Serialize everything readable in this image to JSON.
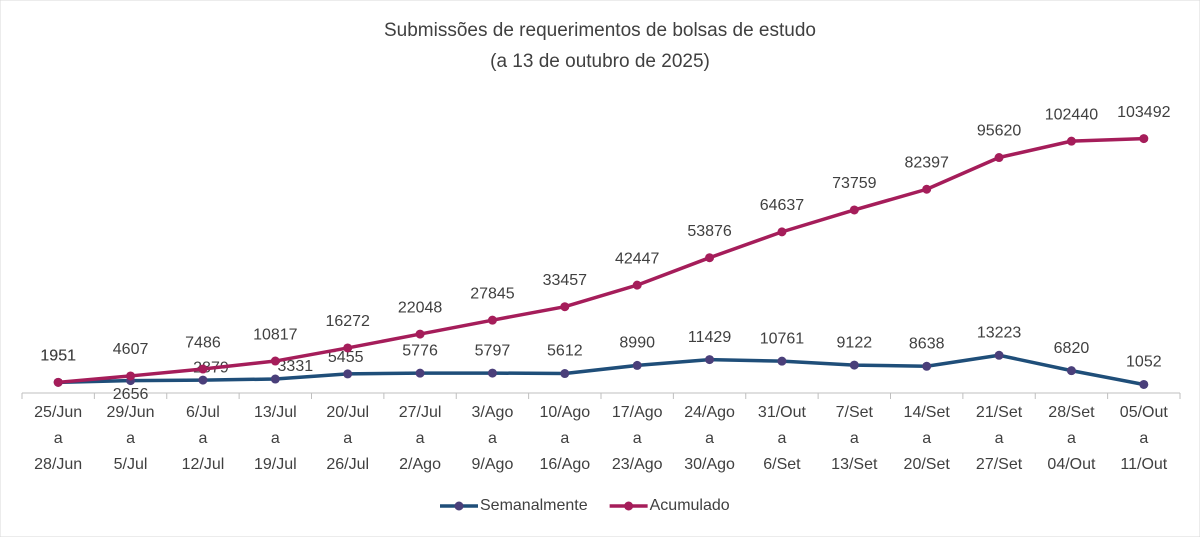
{
  "chart_data": {
    "type": "line",
    "title": "Submissões de requerimentos de bolsas de estudo",
    "subtitle": "(a 13 de outubro de 2025)",
    "categories": [
      [
        "25/Jun",
        "a",
        "28/Jun"
      ],
      [
        "29/Jun",
        "a",
        "5/Jul"
      ],
      [
        "6/Jul",
        "a",
        "12/Jul"
      ],
      [
        "13/Jul",
        "a",
        "19/Jul"
      ],
      [
        "20/Jul",
        "a",
        "26/Jul"
      ],
      [
        "27/Jul",
        "a",
        "2/Ago"
      ],
      [
        "3/Ago",
        "a",
        "9/Ago"
      ],
      [
        "10/Ago",
        "a",
        "16/Ago"
      ],
      [
        "17/Ago",
        "a",
        "23/Ago"
      ],
      [
        "24/Ago",
        "a",
        "30/Ago"
      ],
      [
        "31/Out",
        "a",
        "6/Set"
      ],
      [
        "7/Set",
        "a",
        "13/Set"
      ],
      [
        "14/Set",
        "a",
        "20/Set"
      ],
      [
        "21/Set",
        "a",
        "27/Set"
      ],
      [
        "28/Set",
        "a",
        "04/Out"
      ],
      [
        "05/Out",
        "a",
        "11/Out"
      ]
    ],
    "series": [
      {
        "name": "Semanalmente",
        "color": "#1f4e79",
        "marker_color": "#4a3f7a",
        "values": [
          1951,
          2656,
          2879,
          3331,
          5455,
          5776,
          5797,
          5612,
          8990,
          11429,
          10761,
          9122,
          8638,
          13223,
          6820,
          1052
        ]
      },
      {
        "name": "Acumulado",
        "color": "#a51d5a",
        "marker_color": "#a51d5a",
        "values": [
          1951,
          4607,
          7486,
          10817,
          16272,
          22048,
          27845,
          33457,
          42447,
          53876,
          64637,
          73759,
          82397,
          95620,
          102440,
          103492
        ]
      }
    ],
    "ylim": [
      0,
      120000
    ],
    "legend": "bottom"
  }
}
